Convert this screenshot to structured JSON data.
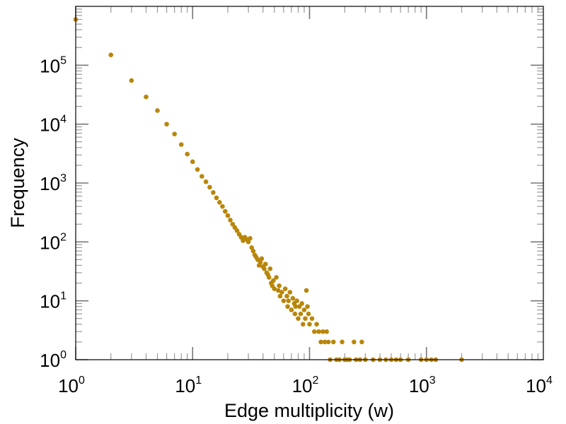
{
  "chart_data": {
    "type": "scatter",
    "title": "",
    "xlabel": "Edge multiplicity (w)",
    "ylabel": "Frequency",
    "xscale": "log",
    "yscale": "log",
    "xlim": [
      1,
      10000
    ],
    "ylim": [
      1,
      1000000
    ],
    "grid": false,
    "marker_color": "#b8860b",
    "x_ticks": [
      {
        "base": "10",
        "exp": "0"
      },
      {
        "base": "10",
        "exp": "1"
      },
      {
        "base": "10",
        "exp": "2"
      },
      {
        "base": "10",
        "exp": "3"
      },
      {
        "base": "10",
        "exp": "4"
      }
    ],
    "y_ticks": [
      {
        "base": "10",
        "exp": "0"
      },
      {
        "base": "10",
        "exp": "1"
      },
      {
        "base": "10",
        "exp": "2"
      },
      {
        "base": "10",
        "exp": "3"
      },
      {
        "base": "10",
        "exp": "4"
      },
      {
        "base": "10",
        "exp": "5"
      }
    ],
    "points": [
      [
        1,
        600000
      ],
      [
        2,
        150000
      ],
      [
        3,
        55000
      ],
      [
        4,
        29000
      ],
      [
        5,
        17000
      ],
      [
        6,
        10000
      ],
      [
        7,
        6800
      ],
      [
        8,
        4500
      ],
      [
        9,
        3100
      ],
      [
        10,
        2300
      ],
      [
        11,
        1700
      ],
      [
        12,
        1300
      ],
      [
        13,
        1050
      ],
      [
        14,
        850
      ],
      [
        15,
        690
      ],
      [
        16,
        560
      ],
      [
        17,
        470
      ],
      [
        18,
        400
      ],
      [
        19,
        330
      ],
      [
        20,
        280
      ],
      [
        21,
        235
      ],
      [
        22,
        200
      ],
      [
        23,
        175
      ],
      [
        24,
        155
      ],
      [
        25,
        135
      ],
      [
        26,
        120
      ],
      [
        27,
        105
      ],
      [
        28,
        120
      ],
      [
        29,
        110
      ],
      [
        30,
        100
      ],
      [
        31,
        115
      ],
      [
        32,
        80
      ],
      [
        33,
        70
      ],
      [
        34,
        60
      ],
      [
        35,
        55
      ],
      [
        36,
        50
      ],
      [
        37,
        40
      ],
      [
        38,
        45
      ],
      [
        39,
        52
      ],
      [
        40,
        38
      ],
      [
        41,
        35
      ],
      [
        42,
        42
      ],
      [
        43,
        30
      ],
      [
        44,
        28
      ],
      [
        45,
        25
      ],
      [
        46,
        35
      ],
      [
        47,
        20
      ],
      [
        48,
        18
      ],
      [
        49,
        22
      ],
      [
        50,
        16
      ],
      [
        52,
        25
      ],
      [
        54,
        15
      ],
      [
        55,
        18
      ],
      [
        56,
        12
      ],
      [
        58,
        14
      ],
      [
        60,
        10
      ],
      [
        62,
        16
      ],
      [
        64,
        12
      ],
      [
        65,
        8
      ],
      [
        66,
        10
      ],
      [
        68,
        14
      ],
      [
        70,
        7
      ],
      [
        72,
        11
      ],
      [
        74,
        9
      ],
      [
        75,
        6
      ],
      [
        76,
        8
      ],
      [
        78,
        10
      ],
      [
        80,
        5
      ],
      [
        82,
        8
      ],
      [
        84,
        6
      ],
      [
        86,
        9
      ],
      [
        88,
        4
      ],
      [
        90,
        7
      ],
      [
        92,
        5
      ],
      [
        94,
        15
      ],
      [
        96,
        8
      ],
      [
        98,
        6
      ],
      [
        100,
        4
      ],
      [
        105,
        5
      ],
      [
        110,
        3
      ],
      [
        115,
        4
      ],
      [
        120,
        3
      ],
      [
        125,
        2
      ],
      [
        130,
        3
      ],
      [
        135,
        2
      ],
      [
        140,
        3
      ],
      [
        145,
        2
      ],
      [
        150,
        1
      ],
      [
        160,
        2
      ],
      [
        170,
        1
      ],
      [
        180,
        1
      ],
      [
        190,
        2
      ],
      [
        200,
        1
      ],
      [
        210,
        1
      ],
      [
        220,
        1
      ],
      [
        240,
        2
      ],
      [
        250,
        1
      ],
      [
        270,
        1
      ],
      [
        280,
        2
      ],
      [
        300,
        1
      ],
      [
        350,
        1
      ],
      [
        400,
        1
      ],
      [
        450,
        1
      ],
      [
        500,
        1
      ],
      [
        550,
        1
      ],
      [
        600,
        1
      ],
      [
        700,
        1
      ],
      [
        900,
        1
      ],
      [
        1000,
        1
      ],
      [
        1100,
        1
      ],
      [
        1200,
        1
      ],
      [
        2000,
        1
      ]
    ]
  }
}
